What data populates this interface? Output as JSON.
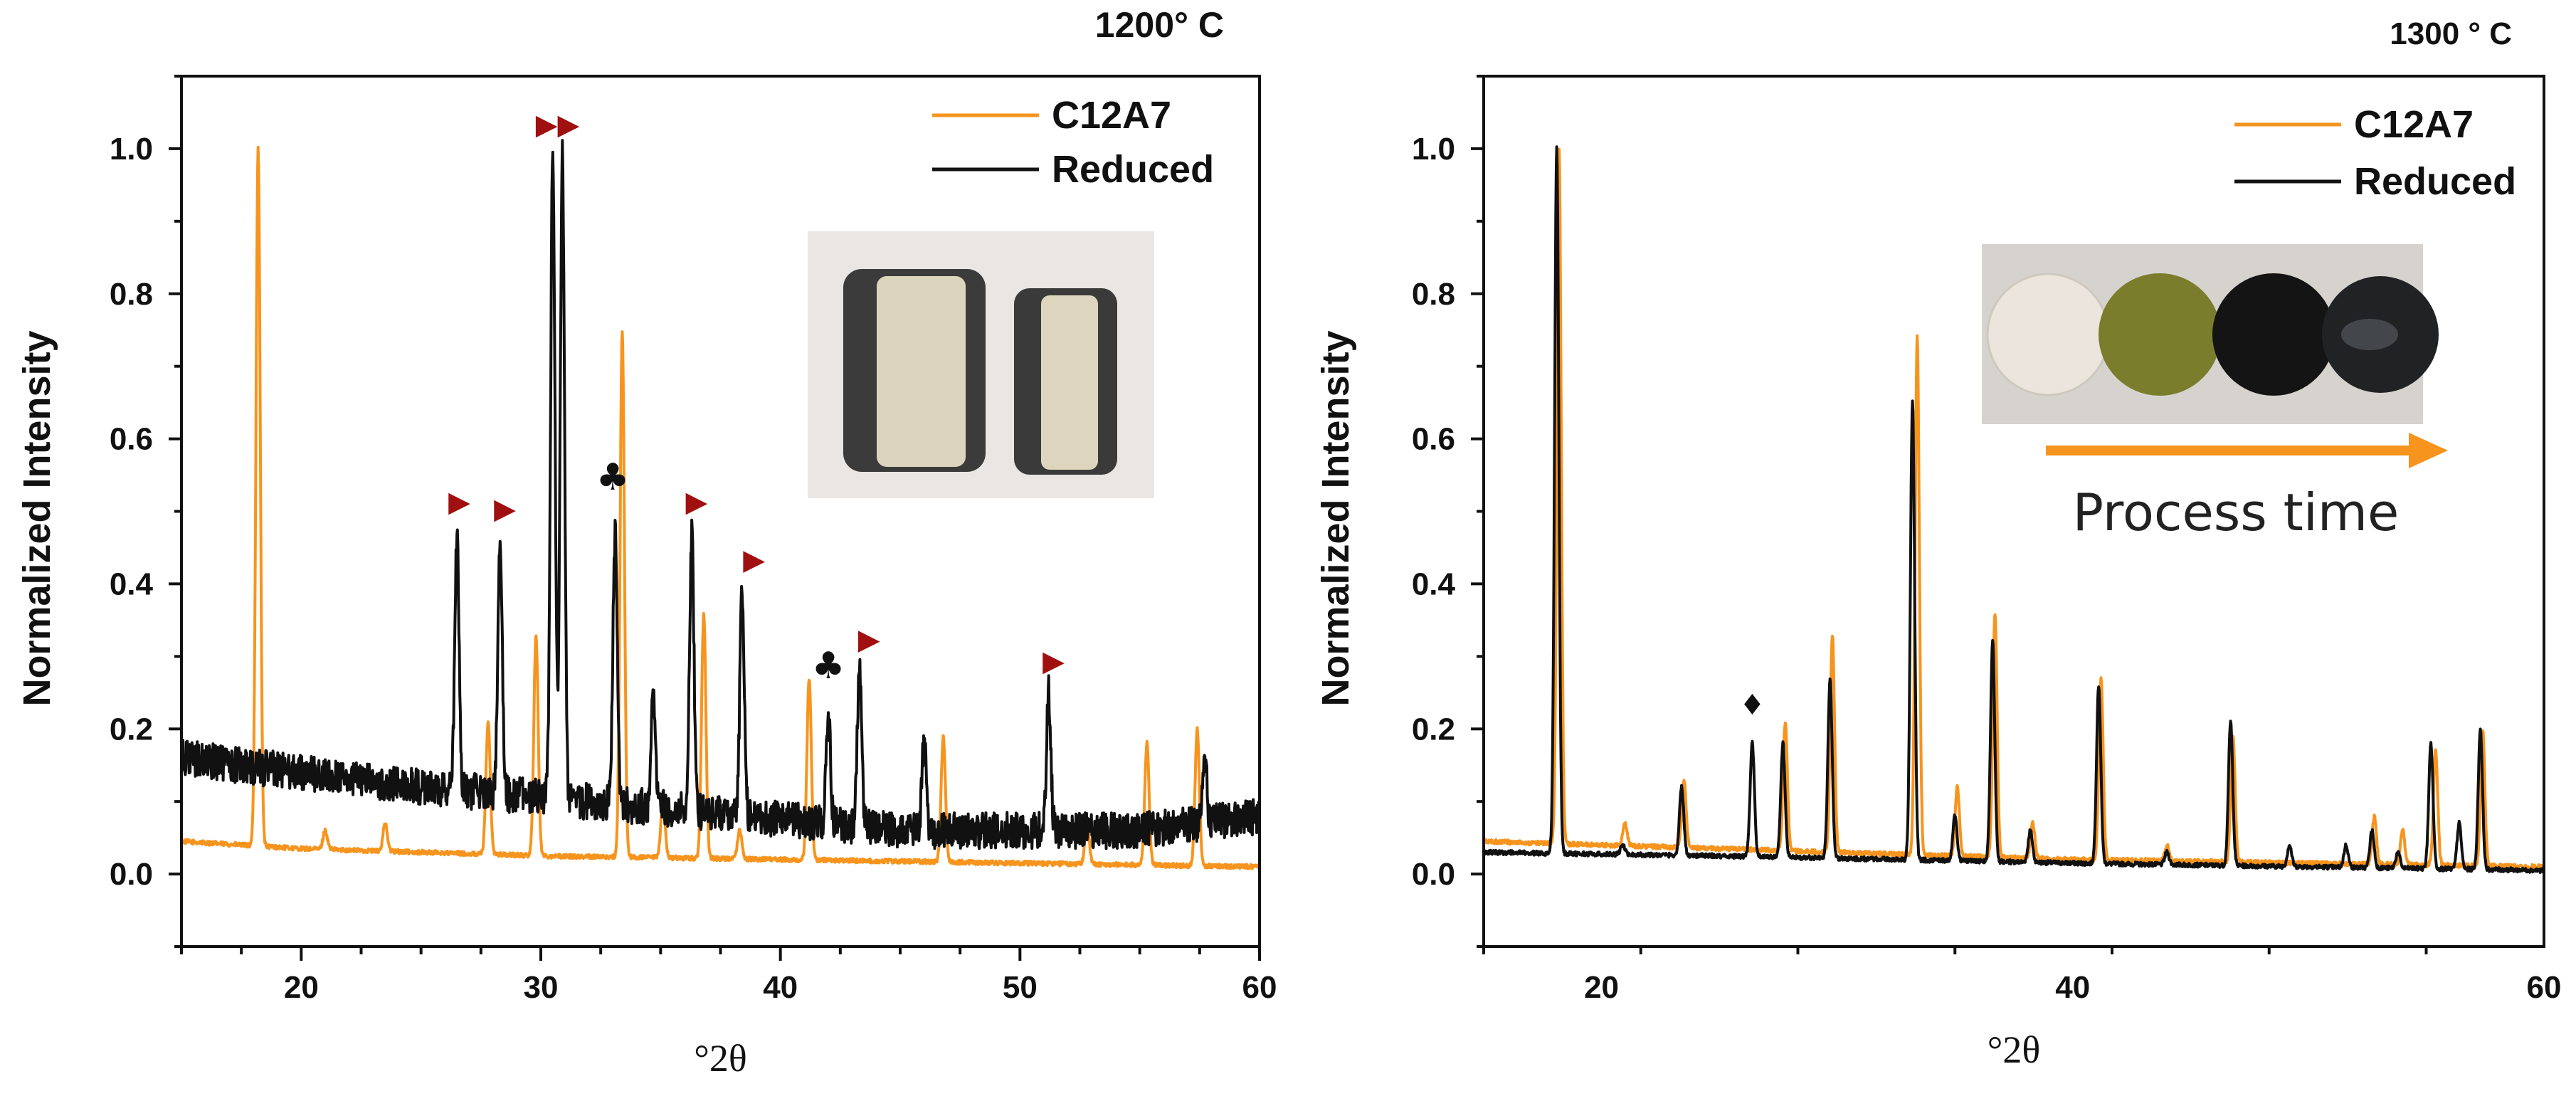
{
  "chart_data": [
    {
      "type": "line",
      "title": "1200° C",
      "xlabel": "°2θ",
      "ylabel": "Normalized Intensity",
      "xlim": [
        15,
        60
      ],
      "ylim": [
        -0.1,
        1.1
      ],
      "x_ticks": [
        "20",
        "30",
        "40",
        "50",
        "60"
      ],
      "y_ticks": [
        "0.0",
        "0.2",
        "0.4",
        "0.6",
        "0.8",
        "1.0"
      ],
      "legend_position": "top-right",
      "series": [
        {
          "name": "C12A7",
          "color": "#f7941d",
          "baseline": [
            [
              15,
              0.045
            ],
            [
              20,
              0.035
            ],
            [
              30,
              0.025
            ],
            [
              40,
              0.02
            ],
            [
              50,
              0.015
            ],
            [
              60,
              0.01
            ]
          ],
          "peaks": [
            {
              "x": 18.2,
              "y": 1.0
            },
            {
              "x": 21.0,
              "y": 0.06
            },
            {
              "x": 23.5,
              "y": 0.07
            },
            {
              "x": 27.8,
              "y": 0.21
            },
            {
              "x": 29.8,
              "y": 0.33
            },
            {
              "x": 33.4,
              "y": 0.75
            },
            {
              "x": 35.1,
              "y": 0.1
            },
            {
              "x": 36.8,
              "y": 0.36
            },
            {
              "x": 38.3,
              "y": 0.06
            },
            {
              "x": 41.2,
              "y": 0.27
            },
            {
              "x": 46.8,
              "y": 0.19
            },
            {
              "x": 52.8,
              "y": 0.07
            },
            {
              "x": 55.3,
              "y": 0.18
            },
            {
              "x": 57.4,
              "y": 0.2
            }
          ]
        },
        {
          "name": "Reduced",
          "color": "#111111",
          "baseline": [
            [
              15,
              0.16
            ],
            [
              25,
              0.12
            ],
            [
              32,
              0.1
            ],
            [
              45,
              0.06
            ],
            [
              55,
              0.06
            ],
            [
              60,
              0.08
            ]
          ],
          "noise": 0.025,
          "peaks": [
            {
              "x": 26.5,
              "y": 0.47
            },
            {
              "x": 28.3,
              "y": 0.47
            },
            {
              "x": 30.5,
              "y": 1.0
            },
            {
              "x": 30.9,
              "y": 0.99
            },
            {
              "x": 33.1,
              "y": 0.47
            },
            {
              "x": 34.7,
              "y": 0.25
            },
            {
              "x": 36.3,
              "y": 0.47
            },
            {
              "x": 38.4,
              "y": 0.39
            },
            {
              "x": 42.0,
              "y": 0.22
            },
            {
              "x": 43.3,
              "y": 0.28
            },
            {
              "x": 46.0,
              "y": 0.18
            },
            {
              "x": 51.2,
              "y": 0.25
            },
            {
              "x": 57.7,
              "y": 0.17
            }
          ]
        }
      ],
      "annotations": [
        {
          "symbol": "▶▶",
          "x": 30.7,
          "y": 1.02,
          "color": "#a01010"
        },
        {
          "symbol": "▶",
          "x": 26.6,
          "y": 0.5,
          "color": "#a01010"
        },
        {
          "symbol": "▶",
          "x": 28.5,
          "y": 0.49,
          "color": "#a01010"
        },
        {
          "symbol": "♣",
          "x": 33.0,
          "y": 0.53,
          "color": "#111111"
        },
        {
          "symbol": "▶",
          "x": 36.5,
          "y": 0.5,
          "color": "#a01010"
        },
        {
          "symbol": "▶",
          "x": 38.9,
          "y": 0.42,
          "color": "#a01010"
        },
        {
          "symbol": "♣",
          "x": 42.0,
          "y": 0.27,
          "color": "#111111"
        },
        {
          "symbol": "▶",
          "x": 43.7,
          "y": 0.31,
          "color": "#a01010"
        },
        {
          "symbol": "▶",
          "x": 51.4,
          "y": 0.28,
          "color": "#a01010"
        }
      ]
    },
    {
      "type": "line",
      "title": "1300 ° C",
      "xlabel": "°2θ",
      "ylabel": "Normalized Intensity",
      "xlim": [
        15,
        60
      ],
      "ylim": [
        -0.1,
        1.1
      ],
      "x_ticks": [
        "20",
        "40",
        "60"
      ],
      "y_ticks": [
        "0.0",
        "0.2",
        "0.4",
        "0.6",
        "0.8",
        "1.0"
      ],
      "legend_position": "top-right",
      "inset_caption": "Process time",
      "series": [
        {
          "name": "C12A7",
          "color": "#f7941d",
          "baseline": [
            [
              15,
              0.045
            ],
            [
              25,
              0.035
            ],
            [
              40,
              0.02
            ],
            [
              60,
              0.01
            ]
          ],
          "peaks": [
            {
              "x": 18.2,
              "y": 1.0
            },
            {
              "x": 21.0,
              "y": 0.07
            },
            {
              "x": 23.5,
              "y": 0.13
            },
            {
              "x": 27.8,
              "y": 0.21
            },
            {
              "x": 29.8,
              "y": 0.33
            },
            {
              "x": 33.4,
              "y": 0.74
            },
            {
              "x": 35.1,
              "y": 0.12
            },
            {
              "x": 36.7,
              "y": 0.36
            },
            {
              "x": 38.3,
              "y": 0.07
            },
            {
              "x": 41.2,
              "y": 0.27
            },
            {
              "x": 44.0,
              "y": 0.04
            },
            {
              "x": 46.8,
              "y": 0.19
            },
            {
              "x": 52.8,
              "y": 0.08
            },
            {
              "x": 54.0,
              "y": 0.06
            },
            {
              "x": 55.4,
              "y": 0.17
            },
            {
              "x": 57.4,
              "y": 0.2
            }
          ]
        },
        {
          "name": "Reduced",
          "color": "#111111",
          "baseline": [
            [
              15,
              0.03
            ],
            [
              25,
              0.025
            ],
            [
              40,
              0.015
            ],
            [
              60,
              0.005
            ]
          ],
          "peaks": [
            {
              "x": 18.1,
              "y": 1.0
            },
            {
              "x": 20.9,
              "y": 0.04
            },
            {
              "x": 23.4,
              "y": 0.12
            },
            {
              "x": 26.4,
              "y": 0.18
            },
            {
              "x": 27.7,
              "y": 0.18
            },
            {
              "x": 29.7,
              "y": 0.27
            },
            {
              "x": 33.2,
              "y": 0.65
            },
            {
              "x": 35.0,
              "y": 0.08
            },
            {
              "x": 36.6,
              "y": 0.32
            },
            {
              "x": 38.2,
              "y": 0.06
            },
            {
              "x": 41.1,
              "y": 0.26
            },
            {
              "x": 44.0,
              "y": 0.03
            },
            {
              "x": 46.7,
              "y": 0.21
            },
            {
              "x": 49.2,
              "y": 0.04
            },
            {
              "x": 51.6,
              "y": 0.04
            },
            {
              "x": 52.7,
              "y": 0.06
            },
            {
              "x": 53.8,
              "y": 0.03
            },
            {
              "x": 55.2,
              "y": 0.18
            },
            {
              "x": 56.4,
              "y": 0.07
            },
            {
              "x": 57.3,
              "y": 0.2
            }
          ]
        }
      ],
      "annotations": [
        {
          "symbol": "♦",
          "x": 26.4,
          "y": 0.22,
          "color": "#111111"
        }
      ]
    }
  ]
}
